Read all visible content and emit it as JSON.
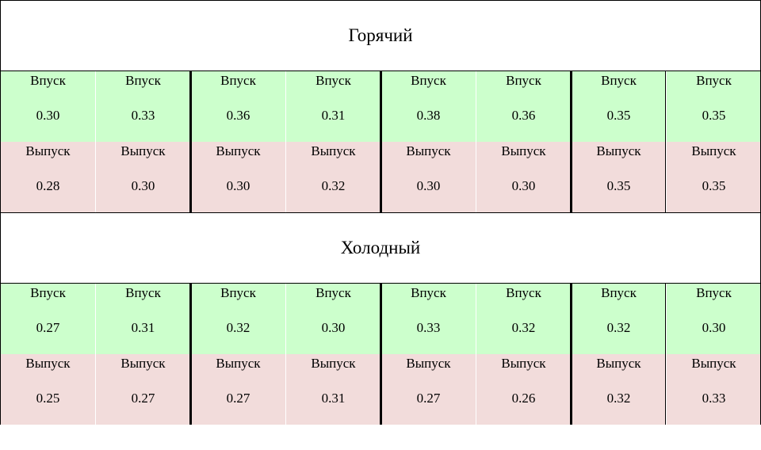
{
  "sections": [
    {
      "title": "Горячий",
      "rows": [
        {
          "cells": [
            {
              "label": "Впуск",
              "value": "0.30"
            },
            {
              "label": "Впуск",
              "value": "0.33"
            },
            {
              "label": "Впуск",
              "value": "0.36"
            },
            {
              "label": "Впуск",
              "value": "0.31"
            },
            {
              "label": "Впуск",
              "value": "0.38"
            },
            {
              "label": "Впуск",
              "value": "0.36"
            },
            {
              "label": "Впуск",
              "value": "0.35"
            },
            {
              "label": "Впуск",
              "value": "0.35"
            }
          ]
        },
        {
          "cells": [
            {
              "label": "Выпуск",
              "value": "0.28"
            },
            {
              "label": "Выпуск",
              "value": "0.30"
            },
            {
              "label": "Выпуск",
              "value": "0.30"
            },
            {
              "label": "Выпуск",
              "value": "0.32"
            },
            {
              "label": "Выпуск",
              "value": "0.30"
            },
            {
              "label": "Выпуск",
              "value": "0.30"
            },
            {
              "label": "Выпуск",
              "value": "0.35"
            },
            {
              "label": "Выпуск",
              "value": "0.35"
            }
          ]
        }
      ]
    },
    {
      "title": "Холодный",
      "rows": [
        {
          "cells": [
            {
              "label": "Впуск",
              "value": "0.27"
            },
            {
              "label": "Впуск",
              "value": "0.31"
            },
            {
              "label": "Впуск",
              "value": "0.32"
            },
            {
              "label": "Впуск",
              "value": "0.30"
            },
            {
              "label": "Впуск",
              "value": "0.33"
            },
            {
              "label": "Впуск",
              "value": "0.32"
            },
            {
              "label": "Впуск",
              "value": "0.32"
            },
            {
              "label": "Впуск",
              "value": "0.30"
            }
          ]
        },
        {
          "cells": [
            {
              "label": "Выпуск",
              "value": "0.25"
            },
            {
              "label": "Выпуск",
              "value": "0.27"
            },
            {
              "label": "Выпуск",
              "value": "0.27"
            },
            {
              "label": "Выпуск",
              "value": "0.31"
            },
            {
              "label": "Выпуск",
              "value": "0.27"
            },
            {
              "label": "Выпуск",
              "value": "0.26"
            },
            {
              "label": "Выпуск",
              "value": "0.32"
            },
            {
              "label": "Выпуск",
              "value": "0.33"
            }
          ]
        }
      ]
    }
  ]
}
